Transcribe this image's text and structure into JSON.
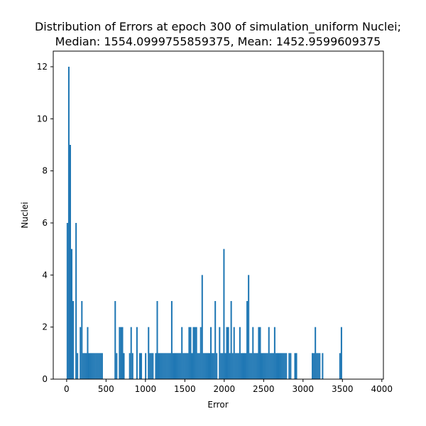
{
  "chart_data": {
    "type": "bar",
    "title_lines": [
      "Distribution of Errors at epoch 300 of simulation_uniform Nuclei;",
      "Median: 1554.0999755859375, Mean: 1452.9599609375"
    ],
    "xlabel": "Error",
    "ylabel": "Nuclei",
    "xlim": [
      -170,
      4020
    ],
    "ylim": [
      0,
      12.6
    ],
    "xticks": [
      0,
      500,
      1000,
      1500,
      2000,
      2500,
      3000,
      3500,
      4000
    ],
    "yticks": [
      0,
      2,
      4,
      6,
      8,
      10,
      12
    ],
    "bin_width": 18.4,
    "bar_color": "#1f77b4",
    "bins": [
      [
        9.2,
        6
      ],
      [
        27.6,
        12
      ],
      [
        46,
        9
      ],
      [
        64.4,
        5
      ],
      [
        82.8,
        3
      ],
      [
        119.6,
        6
      ],
      [
        138,
        1
      ],
      [
        174.8,
        2
      ],
      [
        193.2,
        3
      ],
      [
        211.6,
        1
      ],
      [
        230,
        1
      ],
      [
        248.4,
        1
      ],
      [
        266.8,
        2
      ],
      [
        285.2,
        1
      ],
      [
        303.6,
        1
      ],
      [
        322,
        1
      ],
      [
        340.4,
        1
      ],
      [
        358.8,
        1
      ],
      [
        377.2,
        1
      ],
      [
        395.6,
        1
      ],
      [
        414,
        1
      ],
      [
        432.4,
        1
      ],
      [
        450.8,
        1
      ],
      [
        616.4,
        3
      ],
      [
        634.8,
        1
      ],
      [
        671.6,
        2
      ],
      [
        690,
        2
      ],
      [
        708.4,
        2
      ],
      [
        726.8,
        1
      ],
      [
        800.4,
        1
      ],
      [
        818.8,
        2
      ],
      [
        837.2,
        1
      ],
      [
        892.4,
        2
      ],
      [
        929.2,
        1
      ],
      [
        947.6,
        1
      ],
      [
        1002.8,
        1
      ],
      [
        1039.6,
        2
      ],
      [
        1058,
        1
      ],
      [
        1076.4,
        1
      ],
      [
        1094.8,
        1
      ],
      [
        1131.6,
        1
      ],
      [
        1150,
        3
      ],
      [
        1168.4,
        1
      ],
      [
        1186.8,
        1
      ],
      [
        1205.2,
        1
      ],
      [
        1223.6,
        1
      ],
      [
        1242,
        1
      ],
      [
        1260.4,
        1
      ],
      [
        1278.8,
        1
      ],
      [
        1297.2,
        1
      ],
      [
        1315.6,
        1
      ],
      [
        1334,
        3
      ],
      [
        1352.4,
        1
      ],
      [
        1370.8,
        1
      ],
      [
        1389.2,
        1
      ],
      [
        1407.6,
        1
      ],
      [
        1426,
        1
      ],
      [
        1444.4,
        1
      ],
      [
        1462.8,
        2
      ],
      [
        1481.2,
        1
      ],
      [
        1499.6,
        1
      ],
      [
        1518,
        1
      ],
      [
        1536.4,
        1
      ],
      [
        1554.8,
        2
      ],
      [
        1573.2,
        2
      ],
      [
        1591.6,
        1
      ],
      [
        1610,
        2
      ],
      [
        1628.4,
        2
      ],
      [
        1646.8,
        2
      ],
      [
        1665.2,
        1
      ],
      [
        1683.6,
        1
      ],
      [
        1702,
        2
      ],
      [
        1720.4,
        4
      ],
      [
        1738.8,
        1
      ],
      [
        1757.2,
        1
      ],
      [
        1775.6,
        1
      ],
      [
        1794,
        1
      ],
      [
        1812.4,
        1
      ],
      [
        1830.8,
        2
      ],
      [
        1849.2,
        1
      ],
      [
        1867.6,
        1
      ],
      [
        1886,
        3
      ],
      [
        1904.4,
        1
      ],
      [
        1941.2,
        2
      ],
      [
        1959.6,
        1
      ],
      [
        1978,
        1
      ],
      [
        1996.4,
        5
      ],
      [
        2014.8,
        1
      ],
      [
        2033.2,
        2
      ],
      [
        2051.6,
        2
      ],
      [
        2070,
        1
      ],
      [
        2088.4,
        3
      ],
      [
        2106.8,
        1
      ],
      [
        2125.2,
        2
      ],
      [
        2143.6,
        1
      ],
      [
        2162,
        1
      ],
      [
        2180.4,
        1
      ],
      [
        2198.8,
        2
      ],
      [
        2217.2,
        1
      ],
      [
        2235.6,
        1
      ],
      [
        2254,
        1
      ],
      [
        2272.4,
        1
      ],
      [
        2290.8,
        3
      ],
      [
        2309.2,
        4
      ],
      [
        2327.6,
        1
      ],
      [
        2346,
        1
      ],
      [
        2364.4,
        2
      ],
      [
        2382.8,
        1
      ],
      [
        2401.2,
        1
      ],
      [
        2419.6,
        1
      ],
      [
        2438,
        2
      ],
      [
        2456.4,
        2
      ],
      [
        2474.8,
        1
      ],
      [
        2493.2,
        1
      ],
      [
        2511.6,
        1
      ],
      [
        2530,
        1
      ],
      [
        2548.4,
        1
      ],
      [
        2566.8,
        2
      ],
      [
        2585.2,
        1
      ],
      [
        2603.6,
        1
      ],
      [
        2622,
        1
      ],
      [
        2640.4,
        2
      ],
      [
        2658.8,
        1
      ],
      [
        2677.2,
        1
      ],
      [
        2695.6,
        1
      ],
      [
        2714,
        1
      ],
      [
        2732.4,
        1
      ],
      [
        2750.8,
        1
      ],
      [
        2769.2,
        1
      ],
      [
        2787.6,
        1
      ],
      [
        2824.4,
        1
      ],
      [
        2842.8,
        1
      ],
      [
        2898,
        1
      ],
      [
        2916.4,
        1
      ],
      [
        3119.6,
        1
      ],
      [
        3138,
        1
      ],
      [
        3156.4,
        2
      ],
      [
        3174.8,
        1
      ],
      [
        3193.2,
        1
      ],
      [
        3211.6,
        1
      ],
      [
        3248.4,
        1
      ],
      [
        3469.2,
        1
      ],
      [
        3487.6,
        2
      ]
    ]
  }
}
